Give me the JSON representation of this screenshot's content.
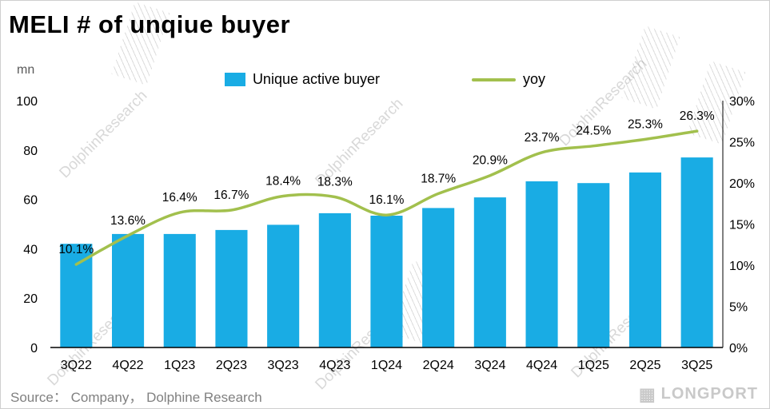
{
  "title": "MELI # of unqiue buyer",
  "axis": {
    "unit_label": "mn"
  },
  "legend": {
    "bar_label": "Unique active buyer",
    "line_label": "yoy"
  },
  "source": "Source：  Company，  Dolphine Research",
  "watermark_text": "DolphinResearch",
  "logo_text": "LONGPORT",
  "colors": {
    "bar": "#19ACE4",
    "line": "#A2C04D",
    "axis_line": "#000000",
    "label_text": "#000000"
  },
  "chart_data": {
    "type": "bar",
    "title": "MELI # of unqiue buyer",
    "categories": [
      "3Q22",
      "4Q22",
      "1Q23",
      "2Q23",
      "3Q23",
      "4Q23",
      "1Q24",
      "2Q24",
      "3Q24",
      "4Q24",
      "1Q25",
      "2Q25",
      "3Q25"
    ],
    "series": [
      {
        "name": "Unique active buyer",
        "type": "bar",
        "axis": "left",
        "values": [
          42,
          46,
          46,
          47.6,
          49.7,
          54.4,
          53.4,
          56.5,
          60.8,
          67.3,
          66.6,
          70.9,
          77
        ]
      },
      {
        "name": "yoy",
        "type": "line",
        "axis": "right",
        "values": [
          10.1,
          13.6,
          16.4,
          16.7,
          18.4,
          18.3,
          16.1,
          18.7,
          20.9,
          23.7,
          24.5,
          25.3,
          26.3
        ]
      }
    ],
    "data_labels": [
      "10.1%",
      "13.6%",
      "16.4%",
      "16.7%",
      "18.4%",
      "18.3%",
      "16.1%",
      "18.7%",
      "20.9%",
      "23.7%",
      "24.5%",
      "25.3%",
      "26.3%"
    ],
    "left_axis": {
      "label": "mn",
      "min": 0,
      "max": 100,
      "ticks": [
        0,
        20,
        40,
        60,
        80,
        100
      ]
    },
    "right_axis": {
      "min": 0,
      "max": 30,
      "tick_values": [
        0,
        5,
        10,
        15,
        20,
        25,
        30
      ],
      "tick_labels": [
        "0%",
        "5%",
        "10%",
        "15%",
        "20%",
        "25%",
        "30%"
      ]
    },
    "grid": false,
    "legend_position": "top-center"
  }
}
